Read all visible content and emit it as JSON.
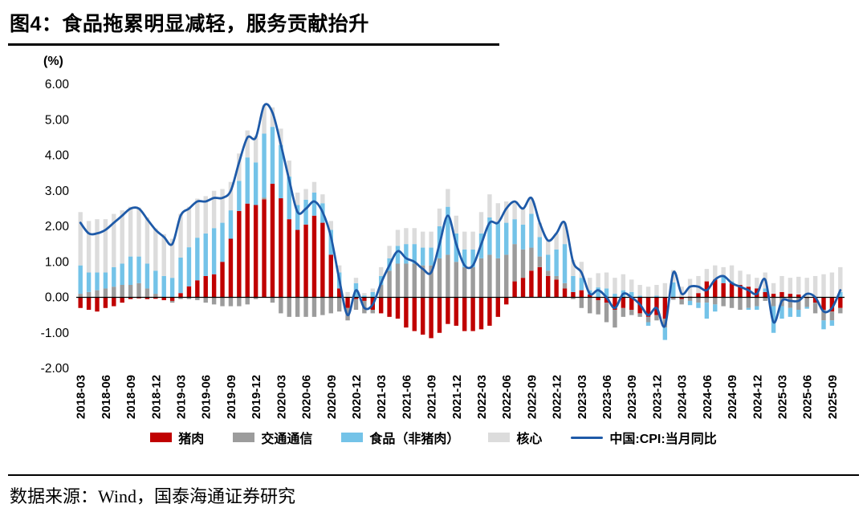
{
  "header": {
    "title": "图4：食品拖累明显减轻，服务贡献抬升"
  },
  "axis": {
    "unit_label": "(%)",
    "y_ticks": [
      "6.00",
      "5.00",
      "4.00",
      "3.00",
      "2.00",
      "1.00",
      "0.00",
      "-1.00",
      "-2.00"
    ]
  },
  "footer": {
    "source": "数据来源：Wind，国泰海通证券研究"
  },
  "chart_data": {
    "type": "bar",
    "subtype": "stacked-contribution-bars-with-line-overlay",
    "title": "图4：食品拖累明显减轻，服务贡献抬升",
    "xlabel": "",
    "ylabel": "(%)",
    "ylim": [
      -2.0,
      6.0
    ],
    "grid": false,
    "legend_position": "bottom",
    "x_tick_every": 3,
    "x": [
      "2018-03",
      "2018-04",
      "2018-05",
      "2018-06",
      "2018-07",
      "2018-08",
      "2018-09",
      "2018-10",
      "2018-11",
      "2018-12",
      "2019-01",
      "2019-02",
      "2019-03",
      "2019-04",
      "2019-05",
      "2019-06",
      "2019-07",
      "2019-08",
      "2019-09",
      "2019-10",
      "2019-11",
      "2019-12",
      "2020-01",
      "2020-02",
      "2020-03",
      "2020-04",
      "2020-05",
      "2020-06",
      "2020-07",
      "2020-08",
      "2020-09",
      "2020-10",
      "2020-11",
      "2020-12",
      "2021-01",
      "2021-02",
      "2021-03",
      "2021-04",
      "2021-05",
      "2021-06",
      "2021-07",
      "2021-08",
      "2021-09",
      "2021-10",
      "2021-11",
      "2021-12",
      "2022-01",
      "2022-02",
      "2022-03",
      "2022-04",
      "2022-05",
      "2022-06",
      "2022-07",
      "2022-08",
      "2022-09",
      "2022-10",
      "2022-11",
      "2022-12",
      "2023-01",
      "2023-02",
      "2023-03",
      "2023-04",
      "2023-05",
      "2023-06",
      "2023-07",
      "2023-08",
      "2023-09",
      "2023-10",
      "2023-11",
      "2023-12",
      "2024-01",
      "2024-02",
      "2024-03",
      "2024-04",
      "2024-05",
      "2024-06",
      "2024-07",
      "2024-08",
      "2024-09",
      "2024-10",
      "2024-11",
      "2024-12",
      "2025-01",
      "2025-02",
      "2025-03",
      "2025-04",
      "2025-05",
      "2025-06",
      "2025-07",
      "2025-08",
      "2025-09",
      "2025-10"
    ],
    "series": [
      {
        "name": "猪肉",
        "type": "bar",
        "color": "#C00000",
        "values": [
          -0.3,
          -0.35,
          -0.4,
          -0.3,
          -0.25,
          -0.15,
          -0.05,
          -0.03,
          -0.05,
          -0.04,
          -0.08,
          -0.1,
          0.12,
          0.31,
          0.48,
          0.6,
          0.65,
          1.0,
          1.65,
          2.43,
          2.64,
          2.6,
          2.76,
          3.2,
          2.79,
          2.2,
          1.9,
          2.05,
          2.3,
          2.1,
          1.2,
          0.25,
          -0.3,
          -0.05,
          -0.1,
          -0.35,
          -0.45,
          -0.55,
          -0.6,
          -0.85,
          -0.95,
          -1.05,
          -1.15,
          -1.0,
          -0.75,
          -0.8,
          -0.95,
          -0.95,
          -0.9,
          -0.8,
          -0.55,
          -0.2,
          0.45,
          0.55,
          0.75,
          0.85,
          0.6,
          0.5,
          0.25,
          0.15,
          0.2,
          0.08,
          -0.08,
          -0.15,
          -0.35,
          -0.3,
          -0.35,
          -0.45,
          -0.55,
          -0.5,
          -0.6,
          -0.02,
          -0.05,
          0.02,
          0.12,
          0.45,
          0.5,
          0.4,
          0.4,
          0.35,
          0.3,
          0.25,
          0.15,
          0.1,
          0.15,
          0.1,
          0.08,
          -0.02,
          -0.15,
          -0.35,
          -0.4,
          -0.3
        ]
      },
      {
        "name": "交通通信",
        "type": "bar",
        "color": "#9C9C9C",
        "values": [
          0.1,
          0.15,
          0.2,
          0.25,
          0.3,
          0.35,
          0.35,
          0.4,
          0.25,
          0.1,
          0.0,
          -0.05,
          -0.05,
          -0.05,
          -0.08,
          -0.15,
          -0.2,
          -0.25,
          -0.25,
          -0.25,
          -0.2,
          -0.05,
          0.05,
          -0.15,
          -0.45,
          -0.55,
          -0.55,
          -0.55,
          -0.55,
          -0.5,
          -0.45,
          -0.4,
          -0.35,
          -0.3,
          -0.35,
          -0.1,
          0.35,
          0.75,
          0.95,
          0.95,
          0.95,
          0.9,
          0.9,
          1.1,
          1.2,
          1.0,
          0.85,
          0.85,
          1.1,
          1.2,
          1.1,
          1.2,
          1.05,
          0.8,
          0.65,
          0.3,
          0.15,
          0.1,
          0.15,
          -0.05,
          -0.3,
          -0.45,
          -0.4,
          -0.55,
          -0.5,
          -0.25,
          -0.15,
          -0.1,
          -0.15,
          -0.15,
          -0.25,
          -0.05,
          -0.15,
          -0.1,
          -0.15,
          -0.15,
          -0.2,
          -0.25,
          -0.3,
          -0.35,
          -0.3,
          -0.25,
          -0.1,
          -0.25,
          -0.25,
          -0.3,
          -0.35,
          -0.25,
          -0.3,
          -0.3,
          -0.25,
          -0.15
        ]
      },
      {
        "name": "食品（非猪肉）",
        "type": "bar",
        "color": "#74C3E8",
        "values": [
          0.8,
          0.55,
          0.5,
          0.45,
          0.55,
          0.6,
          0.8,
          0.75,
          0.7,
          0.65,
          0.6,
          0.55,
          1.0,
          1.1,
          1.2,
          1.2,
          1.3,
          1.1,
          0.8,
          0.85,
          1.3,
          1.2,
          1.8,
          1.6,
          1.5,
          1.2,
          0.7,
          0.7,
          0.65,
          0.55,
          0.7,
          0.45,
          0.0,
          0.4,
          0.05,
          0.15,
          0.25,
          0.35,
          0.5,
          0.55,
          0.55,
          0.5,
          0.5,
          0.9,
          1.35,
          0.8,
          0.5,
          0.5,
          0.7,
          1.05,
          1.0,
          0.9,
          0.7,
          0.7,
          0.95,
          0.55,
          0.45,
          0.75,
          1.1,
          0.45,
          0.35,
          0.12,
          0.28,
          0.25,
          0.1,
          0.2,
          0.15,
          0.05,
          -0.1,
          0.05,
          -0.35,
          0.42,
          0.0,
          -0.12,
          -0.15,
          -0.45,
          -0.2,
          0.22,
          0.05,
          0.0,
          -0.05,
          -0.1,
          0.1,
          -0.75,
          -0.35,
          -0.25,
          -0.2,
          -0.05,
          0.0,
          -0.25,
          -0.15,
          0.15
        ]
      },
      {
        "name": "核心",
        "type": "bar",
        "color": "#DCDCDC",
        "values": [
          1.5,
          1.45,
          1.5,
          1.5,
          1.5,
          1.5,
          1.4,
          1.38,
          1.3,
          1.19,
          1.18,
          1.1,
          1.23,
          1.14,
          1.1,
          1.05,
          1.05,
          0.95,
          0.8,
          0.77,
          0.76,
          0.75,
          0.79,
          0.55,
          0.46,
          0.45,
          0.35,
          0.3,
          0.3,
          0.25,
          0.25,
          0.2,
          0.15,
          0.15,
          0.07,
          0.1,
          0.25,
          0.35,
          0.45,
          0.45,
          0.45,
          0.45,
          0.45,
          0.5,
          0.5,
          0.5,
          0.5,
          0.5,
          0.6,
          0.65,
          0.55,
          0.6,
          0.5,
          0.45,
          0.45,
          0.4,
          0.4,
          0.45,
          0.6,
          0.45,
          0.45,
          0.35,
          0.4,
          0.45,
          0.45,
          0.45,
          0.35,
          0.3,
          0.3,
          0.3,
          0.4,
          0.35,
          0.3,
          0.5,
          0.48,
          0.35,
          0.4,
          0.23,
          0.45,
          0.4,
          0.35,
          0.3,
          0.45,
          0.3,
          0.45,
          0.45,
          0.5,
          0.55,
          0.6,
          0.65,
          0.7,
          0.7
        ]
      },
      {
        "name": "中国:CPI:当月同比",
        "type": "line",
        "color": "#1E5AA8",
        "values": [
          2.1,
          1.8,
          1.8,
          1.9,
          2.1,
          2.3,
          2.5,
          2.5,
          2.2,
          1.9,
          1.7,
          1.5,
          2.3,
          2.5,
          2.7,
          2.7,
          2.8,
          2.8,
          3.0,
          3.8,
          4.5,
          4.5,
          5.4,
          5.2,
          4.3,
          3.3,
          2.4,
          2.5,
          2.7,
          2.4,
          1.7,
          0.5,
          -0.5,
          0.2,
          -0.3,
          -0.2,
          0.4,
          0.9,
          1.3,
          1.1,
          1.0,
          0.8,
          0.7,
          1.5,
          2.3,
          1.5,
          0.9,
          0.9,
          1.5,
          2.1,
          2.1,
          2.5,
          2.7,
          2.5,
          2.8,
          2.1,
          1.6,
          1.8,
          2.1,
          1.0,
          0.7,
          0.1,
          0.2,
          0.0,
          -0.3,
          0.1,
          0.0,
          -0.2,
          -0.5,
          -0.3,
          -0.8,
          0.7,
          0.1,
          0.3,
          0.3,
          0.2,
          0.5,
          0.6,
          0.4,
          0.3,
          0.2,
          0.1,
          0.5,
          -0.7,
          -0.1,
          -0.1,
          -0.1,
          0.1,
          0.0,
          -0.4,
          -0.3,
          0.2
        ]
      }
    ]
  }
}
